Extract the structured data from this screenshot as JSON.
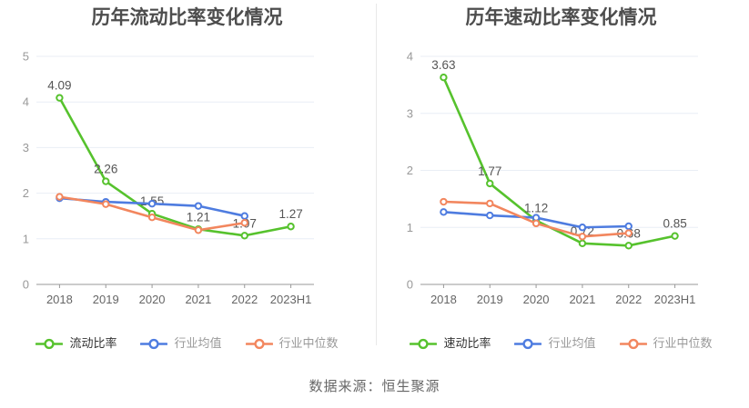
{
  "page": {
    "background": "#ffffff",
    "source_text": "数据来源：恒生聚源"
  },
  "chart_data": [
    {
      "type": "line",
      "title": "历年流动比率变化情况",
      "categories": [
        "2018",
        "2019",
        "2020",
        "2021",
        "2022",
        "2023H1"
      ],
      "ylim": [
        0,
        5
      ],
      "yticks": [
        0,
        1,
        2,
        3,
        4,
        5
      ],
      "grid": true,
      "legend_position": "bottom",
      "series": [
        {
          "name": "流动比率",
          "color": "#56C22D",
          "values": [
            4.09,
            2.26,
            1.55,
            1.21,
            1.07,
            1.27
          ],
          "point_labels": [
            "4.09",
            "2.26",
            "1.55",
            "1.21",
            "1.07",
            "1.27"
          ]
        },
        {
          "name": "行业均值",
          "color": "#4E7CE0",
          "values": [
            1.89,
            1.81,
            1.77,
            1.72,
            1.5,
            null
          ]
        },
        {
          "name": "行业中位数",
          "color": "#F2865E",
          "values": [
            1.92,
            1.76,
            1.47,
            1.19,
            1.35,
            null
          ]
        }
      ]
    },
    {
      "type": "line",
      "title": "历年速动比率变化情况",
      "categories": [
        "2018",
        "2019",
        "2020",
        "2021",
        "2022",
        "2023H1"
      ],
      "ylim": [
        0,
        4
      ],
      "yticks": [
        0,
        1,
        2,
        3,
        4
      ],
      "grid": true,
      "legend_position": "bottom",
      "series": [
        {
          "name": "速动比率",
          "color": "#56C22D",
          "values": [
            3.63,
            1.77,
            1.12,
            0.72,
            0.68,
            0.85
          ],
          "point_labels": [
            "3.63",
            "1.77",
            "1.12",
            "0.72",
            "0.68",
            "0.85"
          ]
        },
        {
          "name": "行业均值",
          "color": "#4E7CE0",
          "values": [
            1.27,
            1.21,
            1.17,
            1.0,
            1.02,
            null
          ]
        },
        {
          "name": "行业中位数",
          "color": "#F2865E",
          "values": [
            1.45,
            1.42,
            1.07,
            0.84,
            0.9,
            null
          ]
        }
      ]
    }
  ],
  "style": {
    "title_color": "#4D4D4D",
    "y_axis_label_color": "#999999",
    "x_axis_label_color": "#666666",
    "point_label_color": "#555555",
    "grid_color": "#E9EEF5",
    "axis_line_color": "#999999",
    "legend_primary_text_color": "#333333",
    "legend_secondary_text_color": "#999999",
    "source_text_color": "#666666",
    "divider_color": "#E8E8E8"
  }
}
